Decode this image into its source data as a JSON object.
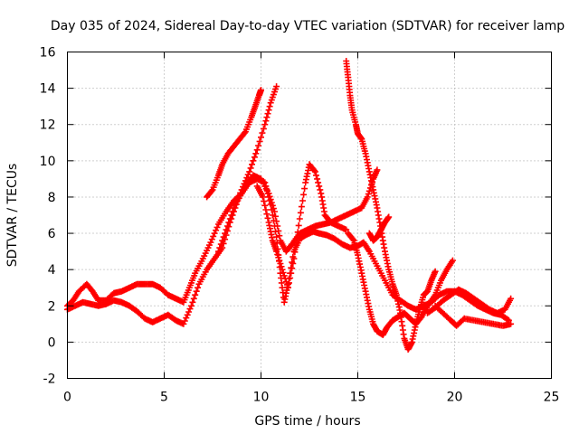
{
  "chart_data": {
    "type": "scatter",
    "title": "Day 035 of 2024, Sidereal Day-to-day VTEC variation (SDTVAR) for receiver lamp",
    "xlabel": "GPS time / hours",
    "ylabel": "SDTVAR / TECUs",
    "xlim": [
      0,
      25
    ],
    "ylim": [
      -2,
      16
    ],
    "xticks": [
      0,
      5,
      10,
      15,
      20,
      25
    ],
    "yticks": [
      -2,
      0,
      2,
      4,
      6,
      8,
      10,
      12,
      14,
      16
    ],
    "grid": true,
    "marker": "plus",
    "color": "#ff0000",
    "series": [
      {
        "name": "SDTVAR",
        "points": [
          [
            0.0,
            2.0
          ],
          [
            0.3,
            2.3
          ],
          [
            0.6,
            2.8
          ],
          [
            1.0,
            3.2
          ],
          [
            1.3,
            2.8
          ],
          [
            1.6,
            2.3
          ],
          [
            2.0,
            2.3
          ],
          [
            2.4,
            2.7
          ],
          [
            2.8,
            2.8
          ],
          [
            3.2,
            3.0
          ],
          [
            3.6,
            3.2
          ],
          [
            4.0,
            3.2
          ],
          [
            4.4,
            3.2
          ],
          [
            4.8,
            3.0
          ],
          [
            5.2,
            2.6
          ],
          [
            5.6,
            2.4
          ],
          [
            6.0,
            2.2
          ],
          [
            6.3,
            3.0
          ],
          [
            6.6,
            3.8
          ],
          [
            7.0,
            4.6
          ],
          [
            7.4,
            5.5
          ],
          [
            7.8,
            6.5
          ],
          [
            8.2,
            7.2
          ],
          [
            8.6,
            7.8
          ],
          [
            9.0,
            8.2
          ],
          [
            9.4,
            8.8
          ],
          [
            9.8,
            9.0
          ],
          [
            10.2,
            8.8
          ],
          [
            10.5,
            7.6
          ],
          [
            10.8,
            5.8
          ],
          [
            11.0,
            3.8
          ],
          [
            11.2,
            2.2
          ],
          [
            11.4,
            3.2
          ],
          [
            11.7,
            5.0
          ],
          [
            12.0,
            5.7
          ],
          [
            12.3,
            5.9
          ],
          [
            12.7,
            6.1
          ],
          [
            13.0,
            6.0
          ],
          [
            13.4,
            5.9
          ],
          [
            13.8,
            5.7
          ],
          [
            14.2,
            5.4
          ],
          [
            14.6,
            5.2
          ],
          [
            15.0,
            5.3
          ],
          [
            15.3,
            5.5
          ],
          [
            15.6,
            5.0
          ],
          [
            16.0,
            4.2
          ],
          [
            16.4,
            3.4
          ],
          [
            16.8,
            2.6
          ],
          [
            17.2,
            2.3
          ],
          [
            17.6,
            2.0
          ],
          [
            18.0,
            1.8
          ],
          [
            18.4,
            2.0
          ],
          [
            18.8,
            2.2
          ],
          [
            19.2,
            2.6
          ],
          [
            19.6,
            2.8
          ],
          [
            20.0,
            2.8
          ],
          [
            20.4,
            2.6
          ],
          [
            20.8,
            2.3
          ],
          [
            21.2,
            2.0
          ],
          [
            21.6,
            1.8
          ],
          [
            22.0,
            1.6
          ],
          [
            22.4,
            1.5
          ],
          [
            22.8,
            1.2
          ]
        ]
      },
      {
        "name": "SDTVAR",
        "points": [
          [
            0.0,
            1.8
          ],
          [
            0.4,
            2.0
          ],
          [
            0.8,
            2.2
          ],
          [
            1.2,
            2.1
          ],
          [
            1.6,
            2.0
          ],
          [
            2.0,
            2.1
          ],
          [
            2.4,
            2.3
          ],
          [
            2.8,
            2.2
          ],
          [
            3.2,
            2.0
          ],
          [
            3.6,
            1.7
          ],
          [
            4.0,
            1.3
          ],
          [
            4.4,
            1.1
          ],
          [
            4.8,
            1.3
          ],
          [
            5.2,
            1.5
          ],
          [
            5.6,
            1.2
          ],
          [
            6.0,
            1.0
          ],
          [
            6.4,
            2.0
          ],
          [
            6.8,
            3.2
          ],
          [
            7.2,
            4.0
          ],
          [
            7.6,
            4.6
          ],
          [
            8.0,
            5.2
          ],
          [
            8.4,
            6.6
          ],
          [
            8.8,
            7.8
          ],
          [
            9.2,
            8.6
          ],
          [
            9.6,
            9.2
          ],
          [
            10.0,
            9.0
          ],
          [
            10.4,
            8.2
          ],
          [
            10.7,
            7.2
          ],
          [
            11.0,
            5.6
          ],
          [
            11.3,
            5.0
          ],
          [
            11.6,
            5.4
          ],
          [
            12.0,
            6.0
          ],
          [
            12.4,
            6.2
          ],
          [
            12.8,
            6.4
          ],
          [
            13.2,
            6.5
          ],
          [
            13.6,
            6.6
          ],
          [
            14.0,
            6.8
          ],
          [
            14.4,
            7.0
          ],
          [
            14.8,
            7.2
          ],
          [
            15.2,
            7.4
          ],
          [
            15.5,
            8.0
          ],
          [
            15.8,
            9.0
          ],
          [
            16.0,
            9.5
          ]
        ]
      },
      {
        "name": "SDTVAR",
        "points": [
          [
            7.2,
            8.0
          ],
          [
            7.5,
            8.4
          ],
          [
            7.8,
            9.2
          ],
          [
            8.0,
            9.8
          ],
          [
            8.3,
            10.4
          ],
          [
            8.6,
            10.8
          ],
          [
            8.9,
            11.2
          ],
          [
            9.2,
            11.6
          ],
          [
            9.5,
            12.4
          ],
          [
            9.7,
            13.0
          ],
          [
            9.9,
            13.6
          ],
          [
            10.0,
            13.9
          ]
        ]
      },
      {
        "name": "SDTVAR",
        "points": [
          [
            7.8,
            5.0
          ],
          [
            8.2,
            6.2
          ],
          [
            8.6,
            7.4
          ],
          [
            9.0,
            8.4
          ],
          [
            9.4,
            9.4
          ],
          [
            9.8,
            10.6
          ],
          [
            10.2,
            12.0
          ],
          [
            10.5,
            13.2
          ],
          [
            10.8,
            14.1
          ]
        ]
      },
      {
        "name": "SDTVAR",
        "points": [
          [
            9.8,
            8.6
          ],
          [
            10.1,
            8.0
          ],
          [
            10.4,
            6.6
          ],
          [
            10.6,
            5.6
          ],
          [
            10.8,
            5.0
          ],
          [
            11.1,
            4.0
          ],
          [
            11.4,
            3.0
          ],
          [
            11.7,
            4.6
          ],
          [
            12.0,
            6.8
          ],
          [
            12.3,
            8.8
          ],
          [
            12.5,
            9.8
          ],
          [
            12.8,
            9.4
          ],
          [
            13.1,
            8.2
          ],
          [
            13.3,
            7.0
          ],
          [
            13.6,
            6.6
          ],
          [
            14.0,
            6.4
          ],
          [
            14.4,
            6.2
          ]
        ]
      },
      {
        "name": "SDTVAR",
        "points": [
          [
            14.4,
            15.5
          ],
          [
            14.5,
            14.6
          ],
          [
            14.6,
            13.6
          ],
          [
            14.7,
            12.8
          ],
          [
            14.9,
            12.0
          ],
          [
            15.0,
            11.5
          ],
          [
            15.2,
            11.2
          ],
          [
            15.4,
            10.4
          ],
          [
            15.6,
            9.4
          ],
          [
            15.8,
            8.4
          ],
          [
            16.0,
            7.4
          ],
          [
            16.2,
            6.2
          ],
          [
            16.4,
            5.0
          ],
          [
            16.6,
            4.0
          ],
          [
            16.8,
            3.2
          ],
          [
            17.0,
            2.6
          ],
          [
            17.2,
            1.6
          ],
          [
            17.4,
            0.2
          ],
          [
            17.6,
            -0.4
          ],
          [
            17.8,
            0.0
          ],
          [
            18.0,
            1.0
          ],
          [
            18.2,
            1.8
          ],
          [
            18.4,
            2.6
          ],
          [
            18.6,
            2.8
          ],
          [
            18.8,
            3.4
          ],
          [
            19.0,
            3.9
          ]
        ]
      },
      {
        "name": "SDTVAR",
        "points": [
          [
            14.5,
            6.0
          ],
          [
            14.8,
            5.6
          ],
          [
            15.0,
            4.8
          ],
          [
            15.2,
            3.8
          ],
          [
            15.4,
            2.8
          ],
          [
            15.6,
            1.8
          ],
          [
            15.8,
            1.0
          ],
          [
            16.0,
            0.6
          ],
          [
            16.3,
            0.4
          ],
          [
            16.5,
            0.8
          ],
          [
            16.8,
            1.2
          ],
          [
            17.1,
            1.4
          ],
          [
            17.4,
            1.6
          ],
          [
            17.7,
            1.3
          ],
          [
            18.0,
            1.0
          ],
          [
            18.3,
            1.4
          ],
          [
            18.6,
            2.0
          ],
          [
            19.0,
            2.6
          ],
          [
            19.3,
            3.4
          ],
          [
            19.6,
            4.0
          ],
          [
            19.9,
            4.5
          ]
        ]
      },
      {
        "name": "SDTVAR",
        "points": [
          [
            15.6,
            6.0
          ],
          [
            15.8,
            5.6
          ],
          [
            16.0,
            5.8
          ],
          [
            16.2,
            6.2
          ],
          [
            16.4,
            6.6
          ],
          [
            16.6,
            6.9
          ]
        ]
      },
      {
        "name": "SDTVAR",
        "points": [
          [
            18.6,
            1.6
          ],
          [
            19.0,
            1.9
          ],
          [
            19.4,
            2.3
          ],
          [
            19.8,
            2.6
          ],
          [
            20.2,
            2.9
          ],
          [
            20.6,
            2.7
          ],
          [
            21.0,
            2.4
          ],
          [
            21.4,
            2.1
          ],
          [
            21.8,
            1.8
          ],
          [
            22.2,
            1.6
          ],
          [
            22.6,
            1.8
          ],
          [
            22.9,
            2.4
          ]
        ]
      },
      {
        "name": "SDTVAR",
        "points": [
          [
            19.0,
            2.0
          ],
          [
            19.4,
            1.6
          ],
          [
            19.8,
            1.2
          ],
          [
            20.1,
            0.9
          ],
          [
            20.5,
            1.3
          ],
          [
            21.0,
            1.2
          ],
          [
            21.5,
            1.1
          ],
          [
            22.0,
            1.0
          ],
          [
            22.5,
            0.9
          ],
          [
            22.9,
            1.0
          ]
        ]
      }
    ]
  }
}
